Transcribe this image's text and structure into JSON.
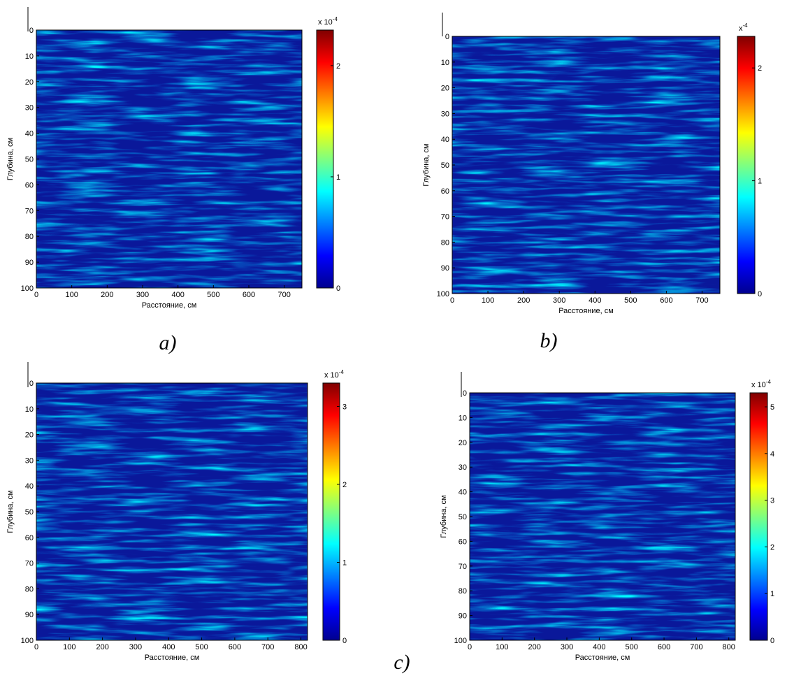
{
  "chart_data": [
    {
      "type": "heatmap",
      "xlabel": "Расстояние, см",
      "ylabel": "Глубина, см",
      "xlim": [
        0,
        750
      ],
      "xticks": [
        0,
        100,
        200,
        300,
        400,
        500,
        600,
        700
      ],
      "ylim": [
        0,
        100
      ],
      "yticks": [
        0,
        10,
        20,
        30,
        40,
        50,
        60,
        70,
        80,
        90,
        100
      ],
      "y_reversed": true,
      "colormap": "jet",
      "clim": [
        0,
        2.32
      ],
      "cticks": [
        0,
        1,
        2
      ],
      "colorbar_multiplier": {
        "base": "x 10",
        "exponent": "-4"
      },
      "caption": "a)"
    },
    {
      "type": "heatmap",
      "xlabel": "Расстояние, см",
      "ylabel": "Глубина, см",
      "xlim": [
        0,
        750
      ],
      "xticks": [
        0,
        100,
        200,
        300,
        400,
        500,
        600,
        700
      ],
      "ylim": [
        0,
        100
      ],
      "yticks": [
        0,
        10,
        20,
        30,
        40,
        50,
        60,
        70,
        80,
        90,
        100
      ],
      "y_reversed": true,
      "colormap": "jet",
      "clim": [
        0,
        2.28
      ],
      "cticks": [
        0,
        1,
        2
      ],
      "colorbar_multiplier": {
        "base": "x",
        "exponent": "-4"
      },
      "caption": "b)"
    },
    {
      "type": "heatmap",
      "xlabel": "Расстояние, см",
      "ylabel": "Глубина, см",
      "xlim": [
        0,
        820
      ],
      "xticks": [
        0,
        100,
        200,
        300,
        400,
        500,
        600,
        700,
        800
      ],
      "ylim": [
        0,
        100
      ],
      "yticks": [
        0,
        10,
        20,
        30,
        40,
        50,
        60,
        70,
        80,
        90,
        100
      ],
      "y_reversed": true,
      "colormap": "jet",
      "clim": [
        0,
        3.3
      ],
      "cticks": [
        0,
        1,
        2,
        3
      ],
      "colorbar_multiplier": {
        "base": "x 10",
        "exponent": "-4"
      },
      "caption": "c)"
    },
    {
      "type": "heatmap",
      "xlabel": "Расстояние, см",
      "ylabel": "Глубина, см",
      "xlim": [
        0,
        820
      ],
      "xticks": [
        0,
        100,
        200,
        300,
        400,
        500,
        600,
        700,
        800
      ],
      "ylim": [
        0,
        100
      ],
      "yticks": [
        0,
        10,
        20,
        30,
        40,
        50,
        60,
        70,
        80,
        90,
        100
      ],
      "y_reversed": true,
      "colormap": "jet",
      "clim": [
        0,
        5.3
      ],
      "cticks": [
        0,
        1,
        2,
        3,
        4,
        5
      ],
      "colorbar_multiplier": {
        "base": "x 10",
        "exponent": "-4"
      }
    }
  ]
}
